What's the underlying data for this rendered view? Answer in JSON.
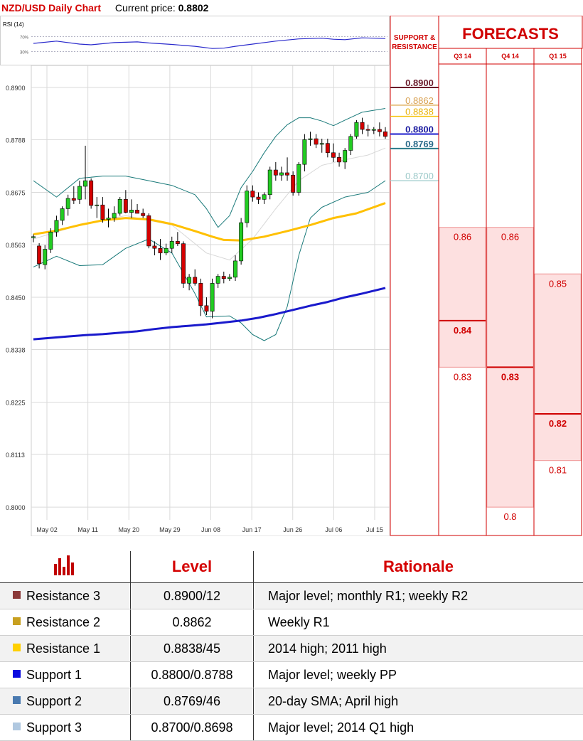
{
  "header": {
    "title": "NZD/USD Daily Chart",
    "price_label": "Current price:",
    "price_value": "0.8802"
  },
  "rsi": {
    "label": "RSI (14)",
    "levels": [
      "70%",
      "30%"
    ]
  },
  "chart_data": [
    {
      "type": "candlestick",
      "title": "NZD/USD Daily Chart",
      "ylim": [
        0.7985,
        0.8935
      ],
      "y_ticks": [
        "0.8900",
        "0.8788",
        "0.8675",
        "0.8563",
        "0.8450",
        "0.8338",
        "0.8225",
        "0.8113",
        "0.8000"
      ],
      "x_ticks": [
        "May 02",
        "May 11",
        "May 20",
        "May 29",
        "Jun 08",
        "Jun 17",
        "Jun 26",
        "Jul 06",
        "Jul 15"
      ],
      "candles": [
        [
          0.8578,
          0.8585,
          0.8568,
          0.858
        ],
        [
          0.856,
          0.8566,
          0.8512,
          0.8522
        ],
        [
          0.852,
          0.8562,
          0.851,
          0.8553
        ],
        [
          0.8553,
          0.8598,
          0.8545,
          0.859
        ],
        [
          0.859,
          0.8625,
          0.858,
          0.8615
        ],
        [
          0.8615,
          0.8645,
          0.8605,
          0.864
        ],
        [
          0.864,
          0.867,
          0.8625,
          0.8662
        ],
        [
          0.8662,
          0.8688,
          0.865,
          0.8658
        ],
        [
          0.866,
          0.87,
          0.865,
          0.8688
        ],
        [
          0.8688,
          0.8775,
          0.866,
          0.87
        ],
        [
          0.87,
          0.8705,
          0.864,
          0.8647
        ],
        [
          0.8647,
          0.8665,
          0.862,
          0.8648
        ],
        [
          0.8648,
          0.8665,
          0.861,
          0.8617
        ],
        [
          0.8617,
          0.864,
          0.86,
          0.862
        ],
        [
          0.862,
          0.8645,
          0.8612,
          0.863
        ],
        [
          0.863,
          0.8665,
          0.8625,
          0.866
        ],
        [
          0.866,
          0.868,
          0.863,
          0.8632
        ],
        [
          0.8632,
          0.866,
          0.862,
          0.8637
        ],
        [
          0.8637,
          0.865,
          0.863,
          0.863
        ],
        [
          0.863,
          0.864,
          0.862,
          0.8625
        ],
        [
          0.8625,
          0.863,
          0.8555,
          0.856
        ],
        [
          0.856,
          0.857,
          0.854,
          0.8555
        ],
        [
          0.8555,
          0.8575,
          0.853,
          0.8545
        ],
        [
          0.8545,
          0.8565,
          0.854,
          0.8555
        ],
        [
          0.8555,
          0.858,
          0.8545,
          0.857
        ],
        [
          0.857,
          0.859,
          0.856,
          0.8565
        ],
        [
          0.8565,
          0.857,
          0.847,
          0.848
        ],
        [
          0.848,
          0.85,
          0.8465,
          0.8493
        ],
        [
          0.8493,
          0.851,
          0.8475,
          0.848
        ],
        [
          0.848,
          0.849,
          0.841,
          0.8432
        ],
        [
          0.8432,
          0.845,
          0.8412,
          0.842
        ],
        [
          0.842,
          0.849,
          0.8405,
          0.848
        ],
        [
          0.848,
          0.85,
          0.847,
          0.8495
        ],
        [
          0.8495,
          0.8505,
          0.848,
          0.849
        ],
        [
          0.849,
          0.85,
          0.8485,
          0.8493
        ],
        [
          0.8493,
          0.854,
          0.8485,
          0.8528
        ],
        [
          0.8528,
          0.862,
          0.852,
          0.861
        ],
        [
          0.861,
          0.869,
          0.86,
          0.8678
        ],
        [
          0.8678,
          0.869,
          0.8655,
          0.8665
        ],
        [
          0.8665,
          0.8675,
          0.865,
          0.866
        ],
        [
          0.866,
          0.8675,
          0.865,
          0.867
        ],
        [
          0.867,
          0.873,
          0.866,
          0.8723
        ],
        [
          0.8723,
          0.874,
          0.87,
          0.8712
        ],
        [
          0.8712,
          0.873,
          0.87,
          0.8717
        ],
        [
          0.8717,
          0.875,
          0.87,
          0.8712
        ],
        [
          0.8712,
          0.872,
          0.8668,
          0.8675
        ],
        [
          0.8675,
          0.874,
          0.8668,
          0.8735
        ],
        [
          0.8735,
          0.88,
          0.872,
          0.8788
        ],
        [
          0.8788,
          0.8805,
          0.8775,
          0.879
        ],
        [
          0.879,
          0.88,
          0.877,
          0.8778
        ],
        [
          0.8778,
          0.879,
          0.876,
          0.878
        ],
        [
          0.878,
          0.879,
          0.875,
          0.876
        ],
        [
          0.876,
          0.878,
          0.874,
          0.875
        ],
        [
          0.875,
          0.876,
          0.873,
          0.874
        ],
        [
          0.874,
          0.877,
          0.8725,
          0.8765
        ],
        [
          0.8765,
          0.88,
          0.8755,
          0.8795
        ],
        [
          0.8795,
          0.883,
          0.879,
          0.8825
        ],
        [
          0.8825,
          0.8835,
          0.88,
          0.881
        ],
        [
          0.881,
          0.882,
          0.8795,
          0.8808
        ],
        [
          0.8808,
          0.8815,
          0.88,
          0.881
        ],
        [
          0.881,
          0.8825,
          0.8795,
          0.8805
        ],
        [
          0.8805,
          0.8815,
          0.879,
          0.8795
        ]
      ],
      "sma_200": [
        [
          0,
          0.836
        ],
        [
          3,
          0.8363
        ],
        [
          6,
          0.8366
        ],
        [
          9,
          0.8369
        ],
        [
          12,
          0.8371
        ],
        [
          15,
          0.8374
        ],
        [
          18,
          0.8377
        ],
        [
          21,
          0.8382
        ],
        [
          24,
          0.8386
        ],
        [
          27,
          0.8389
        ],
        [
          30,
          0.8392
        ],
        [
          33,
          0.8396
        ],
        [
          36,
          0.84
        ],
        [
          39,
          0.8406
        ],
        [
          42,
          0.8414
        ],
        [
          45,
          0.8423
        ],
        [
          48,
          0.8432
        ],
        [
          51,
          0.844
        ],
        [
          54,
          0.845
        ],
        [
          57,
          0.8458
        ],
        [
          61,
          0.847
        ]
      ],
      "sma_100": [
        [
          0,
          0.8585
        ],
        [
          4,
          0.8593
        ],
        [
          8,
          0.8605
        ],
        [
          12,
          0.8615
        ],
        [
          16,
          0.862
        ],
        [
          20,
          0.8617
        ],
        [
          24,
          0.8607
        ],
        [
          28,
          0.8592
        ],
        [
          31,
          0.858
        ],
        [
          33,
          0.8573
        ],
        [
          36,
          0.8572
        ],
        [
          40,
          0.858
        ],
        [
          44,
          0.8592
        ],
        [
          48,
          0.8605
        ],
        [
          52,
          0.862
        ],
        [
          56,
          0.863
        ],
        [
          61,
          0.8652
        ]
      ],
      "sma_20": [
        [
          0,
          0.8575
        ],
        [
          8,
          0.8605
        ],
        [
          16,
          0.8625
        ],
        [
          24,
          0.8605
        ],
        [
          30,
          0.8545
        ],
        [
          34,
          0.853
        ],
        [
          38,
          0.8575
        ],
        [
          42,
          0.864
        ],
        [
          46,
          0.87
        ],
        [
          50,
          0.8733
        ],
        [
          54,
          0.8745
        ],
        [
          58,
          0.8755
        ],
        [
          61,
          0.877
        ]
      ],
      "bollinger_upper": [
        [
          0,
          0.87
        ],
        [
          4,
          0.8665
        ],
        [
          8,
          0.8705
        ],
        [
          12,
          0.871
        ],
        [
          16,
          0.871
        ],
        [
          20,
          0.87
        ],
        [
          24,
          0.869
        ],
        [
          28,
          0.867
        ],
        [
          30,
          0.864
        ],
        [
          32,
          0.86
        ],
        [
          34,
          0.8625
        ],
        [
          36,
          0.8685
        ],
        [
          38,
          0.872
        ],
        [
          40,
          0.876
        ],
        [
          42,
          0.8795
        ],
        [
          44,
          0.882
        ],
        [
          46,
          0.8835
        ],
        [
          48,
          0.8835
        ],
        [
          50,
          0.8828
        ],
        [
          52,
          0.8818
        ],
        [
          54,
          0.883
        ],
        [
          57,
          0.8847
        ],
        [
          61,
          0.8855
        ]
      ],
      "bollinger_lower": [
        [
          0,
          0.8515
        ],
        [
          4,
          0.8538
        ],
        [
          8,
          0.8518
        ],
        [
          12,
          0.852
        ],
        [
          16,
          0.8555
        ],
        [
          20,
          0.8575
        ],
        [
          24,
          0.8545
        ],
        [
          28,
          0.8458
        ],
        [
          30,
          0.8408
        ],
        [
          34,
          0.841
        ],
        [
          36,
          0.8395
        ],
        [
          38,
          0.837
        ],
        [
          40,
          0.8357
        ],
        [
          42,
          0.837
        ],
        [
          44,
          0.843
        ],
        [
          46,
          0.854
        ],
        [
          48,
          0.862
        ],
        [
          50,
          0.8643
        ],
        [
          54,
          0.8665
        ],
        [
          58,
          0.8675
        ],
        [
          61,
          0.87
        ]
      ],
      "rsi_series": [
        [
          0,
          52
        ],
        [
          4,
          58
        ],
        [
          8,
          50
        ],
        [
          10,
          48
        ],
        [
          14,
          54
        ],
        [
          18,
          56
        ],
        [
          20,
          53
        ],
        [
          24,
          49
        ],
        [
          28,
          44
        ],
        [
          31,
          38
        ],
        [
          33,
          39
        ],
        [
          35,
          44
        ],
        [
          38,
          50
        ],
        [
          42,
          58
        ],
        [
          46,
          64
        ],
        [
          50,
          66
        ],
        [
          52,
          63
        ],
        [
          54,
          62
        ],
        [
          57,
          67
        ],
        [
          59,
          66
        ],
        [
          61,
          65
        ]
      ],
      "colors": {
        "up": "#22cc22",
        "down": "#d40000",
        "sma_200": "#1a1acc",
        "sma_100": "#ffc000",
        "bollinger": "#1a7a7a",
        "sma_20": "#d8d8d8"
      }
    },
    {
      "type": "table",
      "title": "FORECASTS",
      "support_resistance": {
        "title_line1": "SUPPORT &",
        "title_line2": "RESISTANCE",
        "levels": [
          {
            "label": "0.8900",
            "value": 0.89,
            "color": "#6b1a2a",
            "text_color": "#6b1a2a",
            "bold": true
          },
          {
            "label": "0.8862",
            "value": 0.8862,
            "color": "#e0b060",
            "text_color": "#d8a050",
            "bold": false
          },
          {
            "label": "0.8838",
            "value": 0.8838,
            "color": "#f5c000",
            "text_color": "#e8b000",
            "bold": false
          },
          {
            "label": "0.8800",
            "value": 0.88,
            "color": "#1a1acc",
            "text_color": "#1a1aa0",
            "bold": true
          },
          {
            "label": "0.8769",
            "value": 0.8769,
            "color": "#2a7a8a",
            "text_color": "#2a6a8a",
            "bold": true
          },
          {
            "label": "0.8700",
            "value": 0.87,
            "color": "#a8d0d0",
            "text_color": "#9ac8c8",
            "bold": false
          }
        ]
      },
      "columns": [
        {
          "label": "Q3 14",
          "range": [
            0.83,
            0.86
          ],
          "marks": [
            {
              "text": "0.86",
              "value": 0.86,
              "bold": false
            },
            {
              "text": "0.84",
              "value": 0.84,
              "bold": true
            },
            {
              "text": "0.83",
              "value": 0.83,
              "bold": false
            }
          ]
        },
        {
          "label": "Q4 14",
          "range": [
            0.8,
            0.86
          ],
          "marks": [
            {
              "text": "0.86",
              "value": 0.86,
              "bold": false
            },
            {
              "text": "0.83",
              "value": 0.83,
              "bold": true
            },
            {
              "text": "0.8",
              "value": 0.8,
              "bold": false
            }
          ]
        },
        {
          "label": "Q1 15",
          "range": [
            0.81,
            0.85
          ],
          "marks": [
            {
              "text": "0.85",
              "value": 0.85,
              "bold": false
            },
            {
              "text": "0.82",
              "value": 0.82,
              "bold": true
            },
            {
              "text": "0.81",
              "value": 0.81,
              "bold": false
            }
          ]
        }
      ]
    }
  ],
  "legend_table": {
    "head_level": "Level",
    "head_rationale": "Rationale",
    "rows": [
      {
        "name": "Resistance 3",
        "color": "#8b3a3a",
        "level": "0.8900/12",
        "rationale": "Major level; monthly R1; weekly R2"
      },
      {
        "name": "Resistance 2",
        "color": "#c8a020",
        "level": "0.8862",
        "rationale": "Weekly R1"
      },
      {
        "name": "Resistance 1",
        "color": "#ffd000",
        "level": "0.8838/45",
        "rationale": "2014 high; 2011 high"
      },
      {
        "name": "Support 1",
        "color": "#0a0ae0",
        "level": "0.8800/0.8788",
        "rationale": "Major level; weekly PP"
      },
      {
        "name": "Support 2",
        "color": "#4a7ab0",
        "level": "0.8769/46",
        "rationale": "20-day SMA; April high"
      },
      {
        "name": "Support 3",
        "color": "#b0c8e0",
        "level": "0.8700/0.8698",
        "rationale": "Major level; 2014 Q1 high"
      }
    ]
  }
}
